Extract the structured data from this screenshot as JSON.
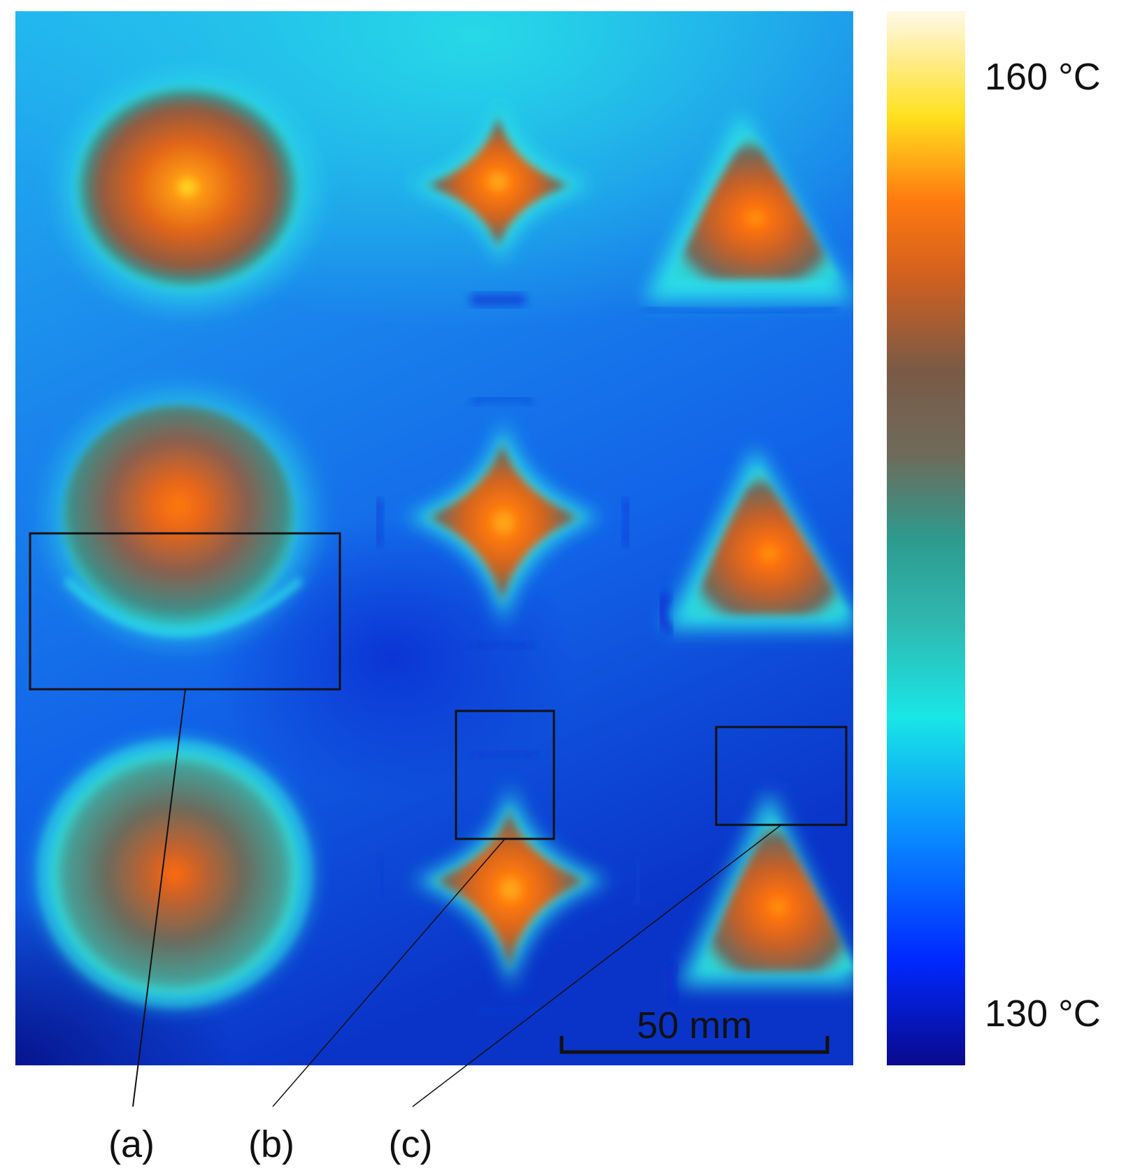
{
  "colorbar": {
    "max_label": "160 °C",
    "min_label": "130 °C",
    "max_value": 160,
    "min_value": 130,
    "unit": "°C",
    "gradient": [
      "#0a0a8c",
      "#0028ff",
      "#0a8cff",
      "#19e6e6",
      "#2e9a8e",
      "#7a5a46",
      "#d2601e",
      "#ff8a0a",
      "#ffe01e",
      "#fff8e8"
    ]
  },
  "scale_bar": {
    "label": "50 mm",
    "length_mm": 50
  },
  "callouts": [
    {
      "label": "(a)",
      "target": "circle-2-lower-edge"
    },
    {
      "label": "(b)",
      "target": "star-3-upper-tip"
    },
    {
      "label": "(c)",
      "target": "triangle-3-upper-tip"
    }
  ],
  "colors": {
    "hot_core": "#ff6a0a",
    "warm": "#7d5c48",
    "ring": "#28e4e4",
    "background": "#1f96ec",
    "cold": "#0a1fb4",
    "outline": "#111111"
  },
  "grid": {
    "rows": 3,
    "columns": 3,
    "column_shapes": [
      "circle",
      "four-point star",
      "triangle"
    ]
  }
}
